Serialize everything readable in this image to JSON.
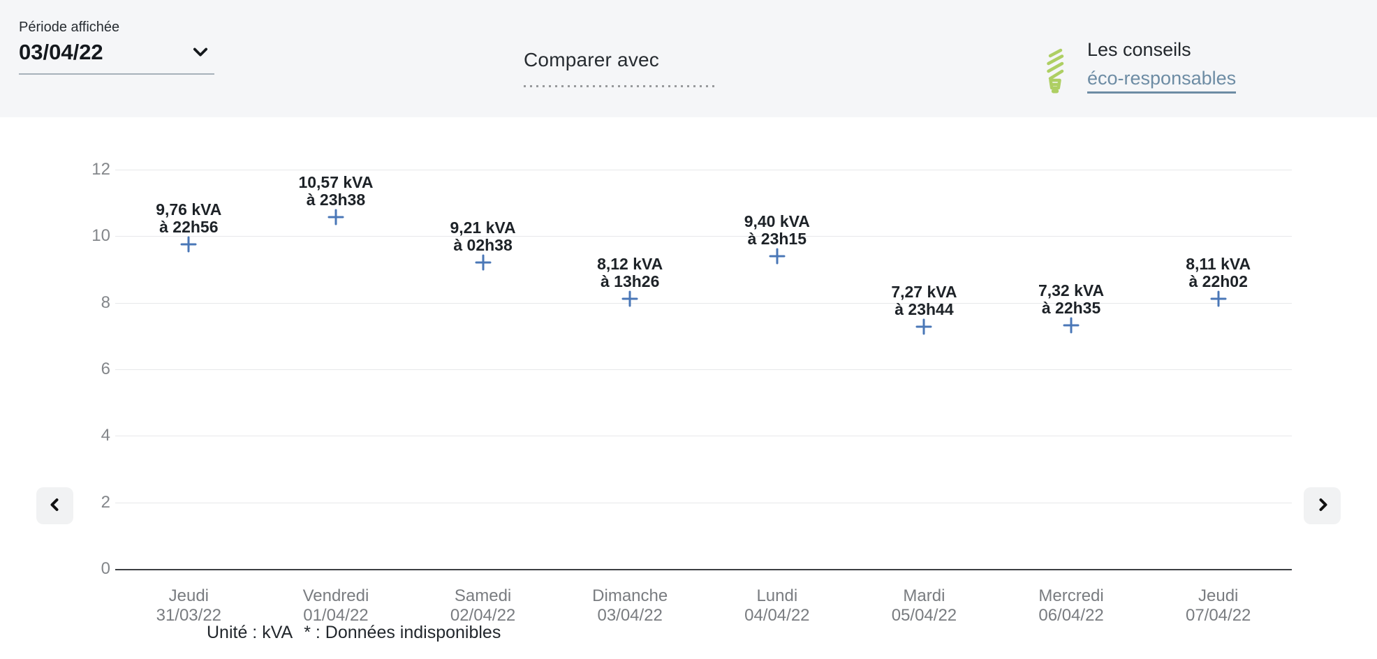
{
  "header": {
    "period_label": "Période affichée",
    "period_value": "03/04/22",
    "compare_label": "Comparer avec",
    "tips": {
      "line1": "Les conseils",
      "line2": "éco-responsables"
    }
  },
  "icons": {
    "period_chevron": "chevron-down",
    "tips_bulb": "cfl-bulb",
    "nav_prev": "chevron-left",
    "nav_next": "chevron-right"
  },
  "chart_data": {
    "type": "scatter",
    "marker_glyph": "plus",
    "unit": "kVA",
    "ylim": [
      0,
      12
    ],
    "yticks": [
      0,
      2,
      4,
      6,
      8,
      10,
      12
    ],
    "grid": "horizontal",
    "points": [
      {
        "day": "Jeudi",
        "date": "31/03/22",
        "value": 9.76,
        "value_label": "9,76 kVA",
        "time_label": "à 22h56"
      },
      {
        "day": "Vendredi",
        "date": "01/04/22",
        "value": 10.57,
        "value_label": "10,57 kVA",
        "time_label": "à 23h38"
      },
      {
        "day": "Samedi",
        "date": "02/04/22",
        "value": 9.21,
        "value_label": "9,21 kVA",
        "time_label": "à 02h38"
      },
      {
        "day": "Dimanche",
        "date": "03/04/22",
        "value": 8.12,
        "value_label": "8,12 kVA",
        "time_label": "à 13h26"
      },
      {
        "day": "Lundi",
        "date": "04/04/22",
        "value": 9.4,
        "value_label": "9,40 kVA",
        "time_label": "à 23h15"
      },
      {
        "day": "Mardi",
        "date": "05/04/22",
        "value": 7.27,
        "value_label": "7,27 kVA",
        "time_label": "à 23h44"
      },
      {
        "day": "Mercredi",
        "date": "06/04/22",
        "value": 7.32,
        "value_label": "7,32 kVA",
        "time_label": "à 22h35"
      },
      {
        "day": "Jeudi",
        "date": "07/04/22",
        "value": 8.11,
        "value_label": "8,11 kVA",
        "time_label": "à 22h02"
      }
    ],
    "footnote_unit": "Unité : kVA",
    "footnote_asterisk": "* : Données indisponibles"
  },
  "colors": {
    "marker": "#4a77b7",
    "link": "#6d8ca4",
    "bulb_icon": "#aecf63",
    "header_bg": "#f5f6f8"
  }
}
